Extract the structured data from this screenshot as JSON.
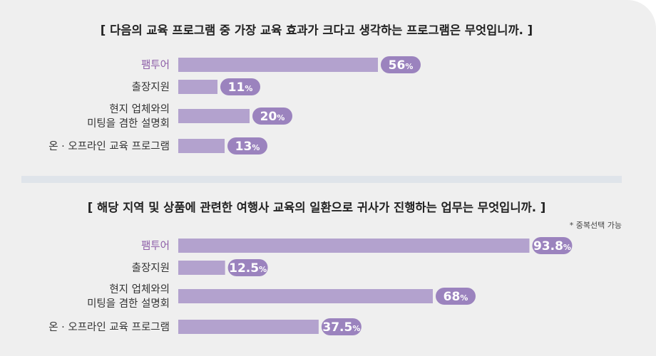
{
  "colors": {
    "bar": "#b3a2ce",
    "pill": "#9b83be",
    "highlight_label": "#8e5fa8",
    "background": "#efefef",
    "divider": "#dfe4ea"
  },
  "chart_data": [
    {
      "type": "bar",
      "orientation": "horizontal",
      "title": "[ 다음의 교육 프로그램 중 가장 교육 효과가 크다고 생각하는 프로그램은 무엇입니까. ]",
      "note": "",
      "categories": [
        "팸투어",
        "출장지원",
        "현지 업체와의|미팅을 겸한 설명회",
        "온 · 오프라인 교육 프로그램"
      ],
      "values": [
        56,
        11,
        20,
        13
      ],
      "labels": [
        "56",
        "11",
        "20",
        "13"
      ],
      "unit": "%",
      "xlim": [
        0,
        100
      ]
    },
    {
      "type": "bar",
      "orientation": "horizontal",
      "title": "[ 해당 지역 및 상품에 관련한 여행사 교육의 일환으로 귀사가 진행하는 업무는 무엇입니까. ]",
      "note": "* 중복선택 가능",
      "categories": [
        "팸투어",
        "출장지원",
        "현지 업체와의|미팅을 겸한 설명회",
        "온 · 오프라인 교육 프로그램"
      ],
      "values": [
        93.8,
        12.5,
        68,
        37.5
      ],
      "labels": [
        "93.8",
        "12.5",
        "68",
        "37.5"
      ],
      "unit": "%",
      "xlim": [
        0,
        100
      ]
    }
  ]
}
